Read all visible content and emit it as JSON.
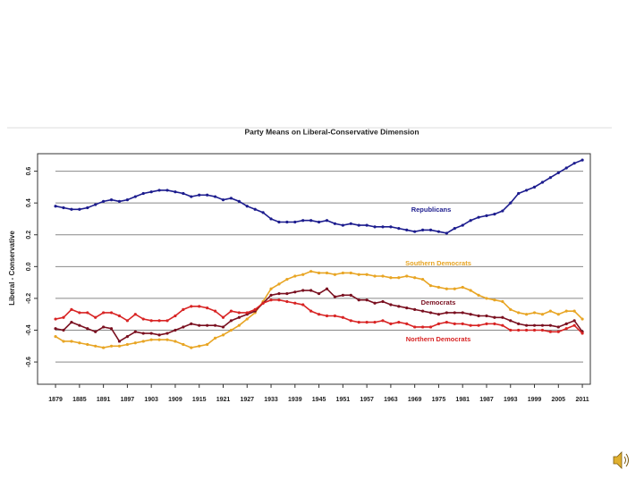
{
  "chart_data": {
    "type": "line",
    "title": "Party Means on Liberal-Conservative Dimension",
    "ylabel": "Liberal - Conservative",
    "x": [
      1879,
      1881,
      1883,
      1885,
      1887,
      1889,
      1891,
      1893,
      1895,
      1897,
      1899,
      1901,
      1903,
      1905,
      1907,
      1909,
      1911,
      1913,
      1915,
      1917,
      1919,
      1921,
      1923,
      1925,
      1927,
      1929,
      1931,
      1933,
      1935,
      1937,
      1939,
      1941,
      1943,
      1945,
      1947,
      1949,
      1951,
      1953,
      1955,
      1957,
      1959,
      1961,
      1963,
      1965,
      1967,
      1969,
      1971,
      1973,
      1975,
      1977,
      1979,
      1981,
      1983,
      1985,
      1987,
      1989,
      1991,
      1993,
      1995,
      1997,
      1999,
      2001,
      2003,
      2005,
      2007,
      2009,
      2011
    ],
    "series": [
      {
        "name": "Republicans",
        "color": "#1c1c8e",
        "values": [
          0.38,
          0.37,
          0.36,
          0.36,
          0.37,
          0.39,
          0.41,
          0.42,
          0.41,
          0.42,
          0.44,
          0.46,
          0.47,
          0.48,
          0.48,
          0.47,
          0.46,
          0.44,
          0.45,
          0.45,
          0.44,
          0.42,
          0.43,
          0.41,
          0.38,
          0.36,
          0.34,
          0.3,
          0.28,
          0.28,
          0.28,
          0.29,
          0.29,
          0.28,
          0.29,
          0.27,
          0.26,
          0.27,
          0.26,
          0.26,
          0.25,
          0.25,
          0.25,
          0.24,
          0.23,
          0.22,
          0.23,
          0.23,
          0.22,
          0.21,
          0.24,
          0.26,
          0.29,
          0.31,
          0.32,
          0.33,
          0.35,
          0.4,
          0.46,
          0.48,
          0.5,
          0.53,
          0.56,
          0.59,
          0.62,
          0.65,
          0.67
        ]
      },
      {
        "name": "Southern Democrats",
        "color": "#e8a524",
        "values": [
          -0.44,
          -0.47,
          -0.47,
          -0.48,
          -0.49,
          -0.5,
          -0.51,
          -0.5,
          -0.5,
          -0.49,
          -0.48,
          -0.47,
          -0.46,
          -0.46,
          -0.46,
          -0.47,
          -0.49,
          -0.51,
          -0.5,
          -0.49,
          -0.45,
          -0.43,
          -0.4,
          -0.37,
          -0.33,
          -0.29,
          -0.22,
          -0.14,
          -0.11,
          -0.08,
          -0.06,
          -0.05,
          -0.03,
          -0.04,
          -0.04,
          -0.05,
          -0.04,
          -0.04,
          -0.05,
          -0.05,
          -0.06,
          -0.06,
          -0.07,
          -0.07,
          -0.06,
          -0.07,
          -0.08,
          -0.12,
          -0.13,
          -0.14,
          -0.14,
          -0.13,
          -0.15,
          -0.18,
          -0.2,
          -0.21,
          -0.22,
          -0.27,
          -0.29,
          -0.3,
          -0.29,
          -0.3,
          -0.28,
          -0.3,
          -0.28,
          -0.28,
          -0.33
        ]
      },
      {
        "name": "Democrats",
        "color": "#7a1020",
        "values": [
          -0.39,
          -0.4,
          -0.35,
          -0.37,
          -0.39,
          -0.41,
          -0.38,
          -0.39,
          -0.47,
          -0.44,
          -0.41,
          -0.42,
          -0.42,
          -0.43,
          -0.42,
          -0.4,
          -0.38,
          -0.36,
          -0.37,
          -0.37,
          -0.37,
          -0.38,
          -0.34,
          -0.32,
          -0.3,
          -0.28,
          -0.23,
          -0.18,
          -0.17,
          -0.17,
          -0.16,
          -0.15,
          -0.15,
          -0.17,
          -0.14,
          -0.19,
          -0.18,
          -0.18,
          -0.21,
          -0.21,
          -0.23,
          -0.22,
          -0.24,
          -0.25,
          -0.26,
          -0.27,
          -0.28,
          -0.29,
          -0.3,
          -0.29,
          -0.29,
          -0.29,
          -0.3,
          -0.31,
          -0.31,
          -0.32,
          -0.32,
          -0.34,
          -0.36,
          -0.37,
          -0.37,
          -0.37,
          -0.37,
          -0.38,
          -0.36,
          -0.34,
          -0.41
        ]
      },
      {
        "name": "Northern Democrats",
        "color": "#d82424",
        "values": [
          -0.33,
          -0.32,
          -0.27,
          -0.29,
          -0.29,
          -0.32,
          -0.29,
          -0.29,
          -0.31,
          -0.34,
          -0.3,
          -0.33,
          -0.34,
          -0.34,
          -0.34,
          -0.31,
          -0.27,
          -0.25,
          -0.25,
          -0.26,
          -0.28,
          -0.32,
          -0.28,
          -0.29,
          -0.29,
          -0.27,
          -0.23,
          -0.21,
          -0.21,
          -0.22,
          -0.23,
          -0.24,
          -0.28,
          -0.3,
          -0.31,
          -0.31,
          -0.32,
          -0.34,
          -0.35,
          -0.35,
          -0.35,
          -0.34,
          -0.36,
          -0.35,
          -0.36,
          -0.38,
          -0.38,
          -0.38,
          -0.36,
          -0.35,
          -0.36,
          -0.36,
          -0.37,
          -0.37,
          -0.36,
          -0.36,
          -0.37,
          -0.4,
          -0.4,
          -0.4,
          -0.4,
          -0.4,
          -0.41,
          -0.41,
          -0.39,
          -0.37,
          -0.42
        ]
      }
    ],
    "xlim": [
      1874.5,
      2013
    ],
    "xticks": [
      1879,
      1885,
      1891,
      1897,
      1903,
      1909,
      1915,
      1921,
      1927,
      1933,
      1939,
      1945,
      1951,
      1957,
      1963,
      1969,
      1975,
      1981,
      1987,
      1993,
      1999,
      2005,
      2011
    ],
    "ylim": [
      -0.74,
      0.71
    ],
    "yticks": [
      0.6,
      0.4,
      0.2,
      {
        "value": 0,
        "label": "0.0"
      },
      -0.2,
      -0.4,
      -0.6
    ],
    "grid": true
  }
}
